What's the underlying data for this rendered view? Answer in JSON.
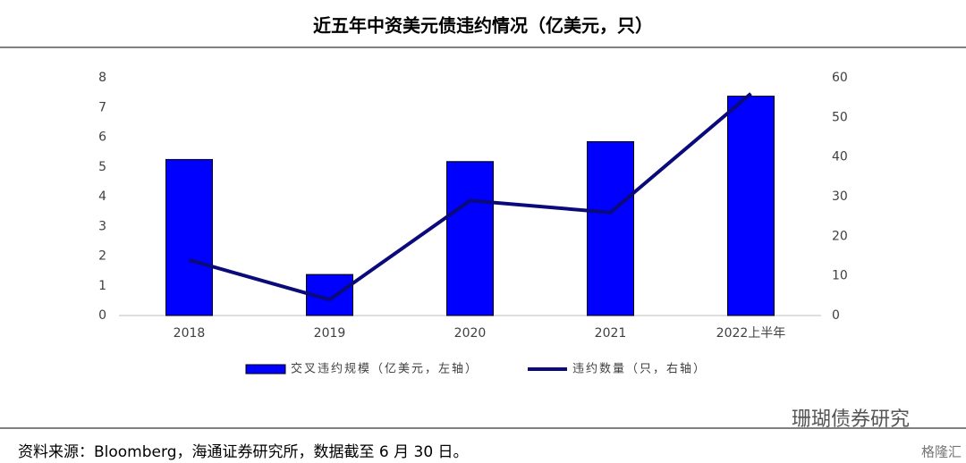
{
  "chart_data": {
    "type": "bar",
    "title": "近五年中资美元债违约情况（亿美元，只）",
    "categories": [
      "2018",
      "2019",
      "2020",
      "2021",
      "2022上半年"
    ],
    "series": [
      {
        "name": "交叉违约规模（亿美元，左轴）",
        "type": "bar",
        "color": "#0000ff",
        "values": [
          5.25,
          1.38,
          5.18,
          5.85,
          7.38
        ]
      },
      {
        "name": "违约数量（只，右轴）",
        "type": "line",
        "axis": "y2",
        "color": "#0a0a7a",
        "values": [
          14,
          4,
          29,
          26,
          56
        ]
      }
    ],
    "ylim": [
      0,
      8
    ],
    "yticks": [
      0,
      1,
      2,
      3,
      4,
      5,
      6,
      7,
      8
    ],
    "y2lim": [
      0,
      60
    ],
    "y2ticks": [
      0,
      10,
      20,
      30,
      40,
      50,
      60
    ]
  },
  "source": "资料来源：Bloomberg，海通证券研究所，数据截至 6 月 30 日。",
  "watermark": "珊瑚债券研究",
  "logo": "格隆汇"
}
